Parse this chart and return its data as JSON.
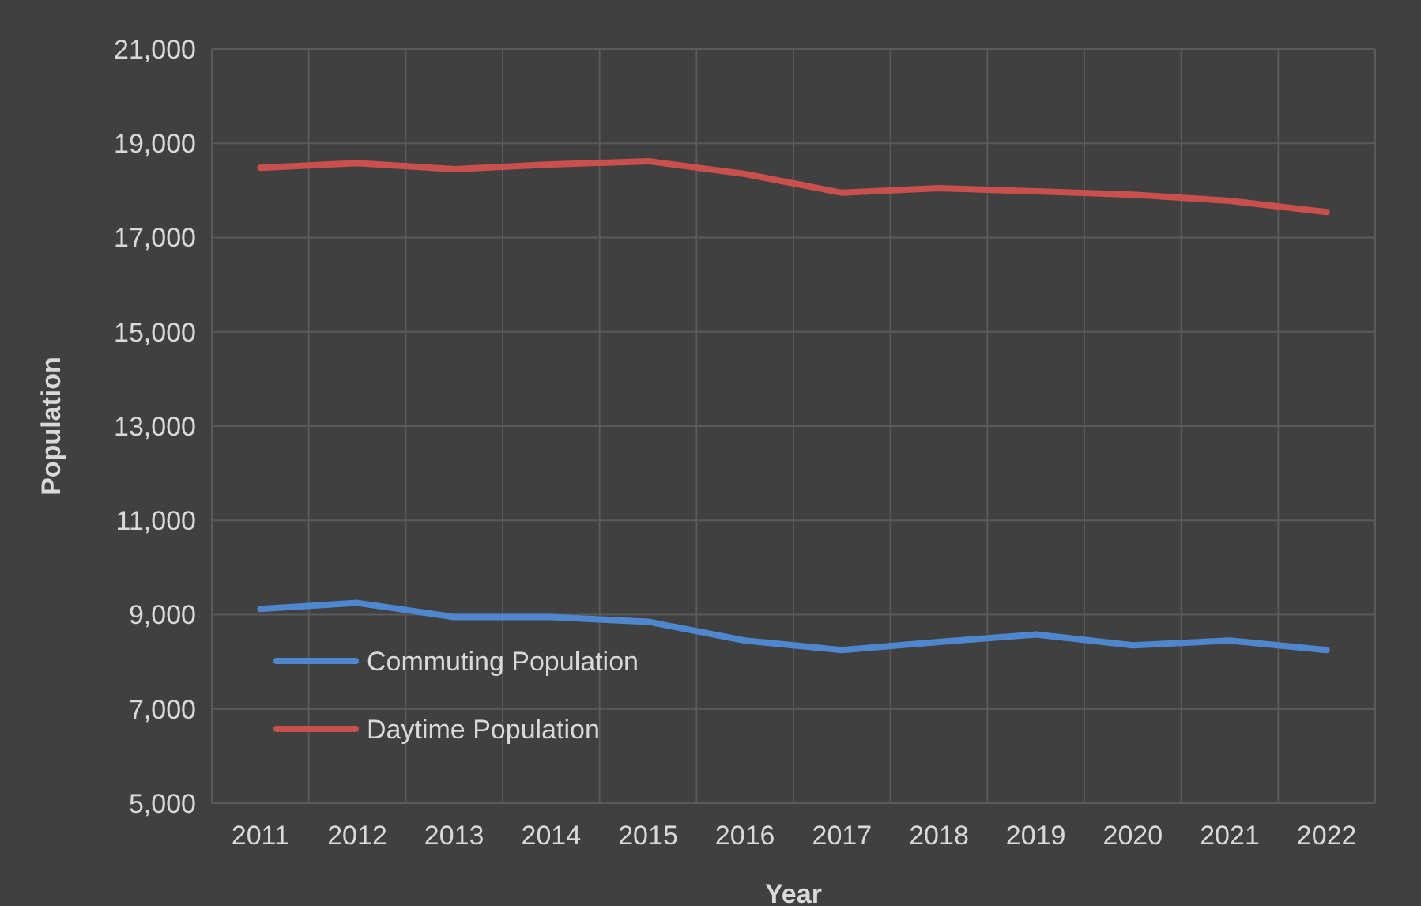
{
  "chart_data": {
    "type": "line",
    "xlabel": "Year",
    "ylabel": "Population",
    "categories": [
      "2011",
      "2012",
      "2013",
      "2014",
      "2015",
      "2016",
      "2017",
      "2018",
      "2019",
      "2020",
      "2021",
      "2022"
    ],
    "series": [
      {
        "name": "Commuting Population",
        "color": "#4f87cf",
        "values": [
          9120,
          9250,
          8950,
          8950,
          8850,
          8450,
          8250,
          8420,
          8580,
          8350,
          8450,
          8250
        ]
      },
      {
        "name": "Daytime Population",
        "color": "#c9504c",
        "values": [
          18480,
          18580,
          18450,
          18550,
          18620,
          18350,
          17950,
          18050,
          17980,
          17910,
          17780,
          17540
        ]
      }
    ],
    "ylim": [
      5000,
      21000
    ],
    "yticks": [
      {
        "value": 5000,
        "label": "5,000"
      },
      {
        "value": 7000,
        "label": "7,000"
      },
      {
        "value": 9000,
        "label": "9,000"
      },
      {
        "value": 11000,
        "label": "11,000"
      },
      {
        "value": 13000,
        "label": "13,000"
      },
      {
        "value": 15000,
        "label": "15,000"
      },
      {
        "value": 17000,
        "label": "17,000"
      },
      {
        "value": 19000,
        "label": "19,000"
      },
      {
        "value": 21000,
        "label": "21,000"
      }
    ],
    "grid": true,
    "legend": "bottom left",
    "marker": "none",
    "line_style": "solid"
  }
}
